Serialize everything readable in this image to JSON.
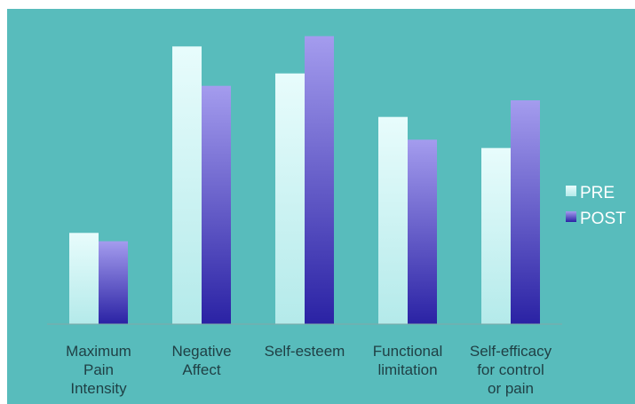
{
  "chart_data": {
    "type": "bar",
    "categories": [
      [
        "Maximum",
        "Pain",
        "Intensity"
      ],
      [
        "Negative",
        "Affect"
      ],
      [
        "Self-esteem"
      ],
      [
        "Functional",
        "limitation"
      ],
      [
        "Self-efficacy",
        "for control",
        "or pain"
      ]
    ],
    "series": [
      {
        "name": "PRE",
        "values": [
          22,
          67,
          60.5,
          50,
          42.5
        ]
      },
      {
        "name": "POST",
        "values": [
          20,
          57.5,
          69.5,
          44.5,
          54
        ]
      }
    ],
    "ylim": [
      0,
      75
    ],
    "grid": false,
    "legend_position": "right",
    "colors": {
      "background": "#58bcbc",
      "pre_top": "#e8fcfc",
      "pre_bottom": "#b4eaea",
      "post_top": "#a49cee",
      "post_bottom": "#2a22a4",
      "axis": "#7fa8a8",
      "label": "#1f3f44",
      "legend_text": "#ffffff"
    }
  }
}
